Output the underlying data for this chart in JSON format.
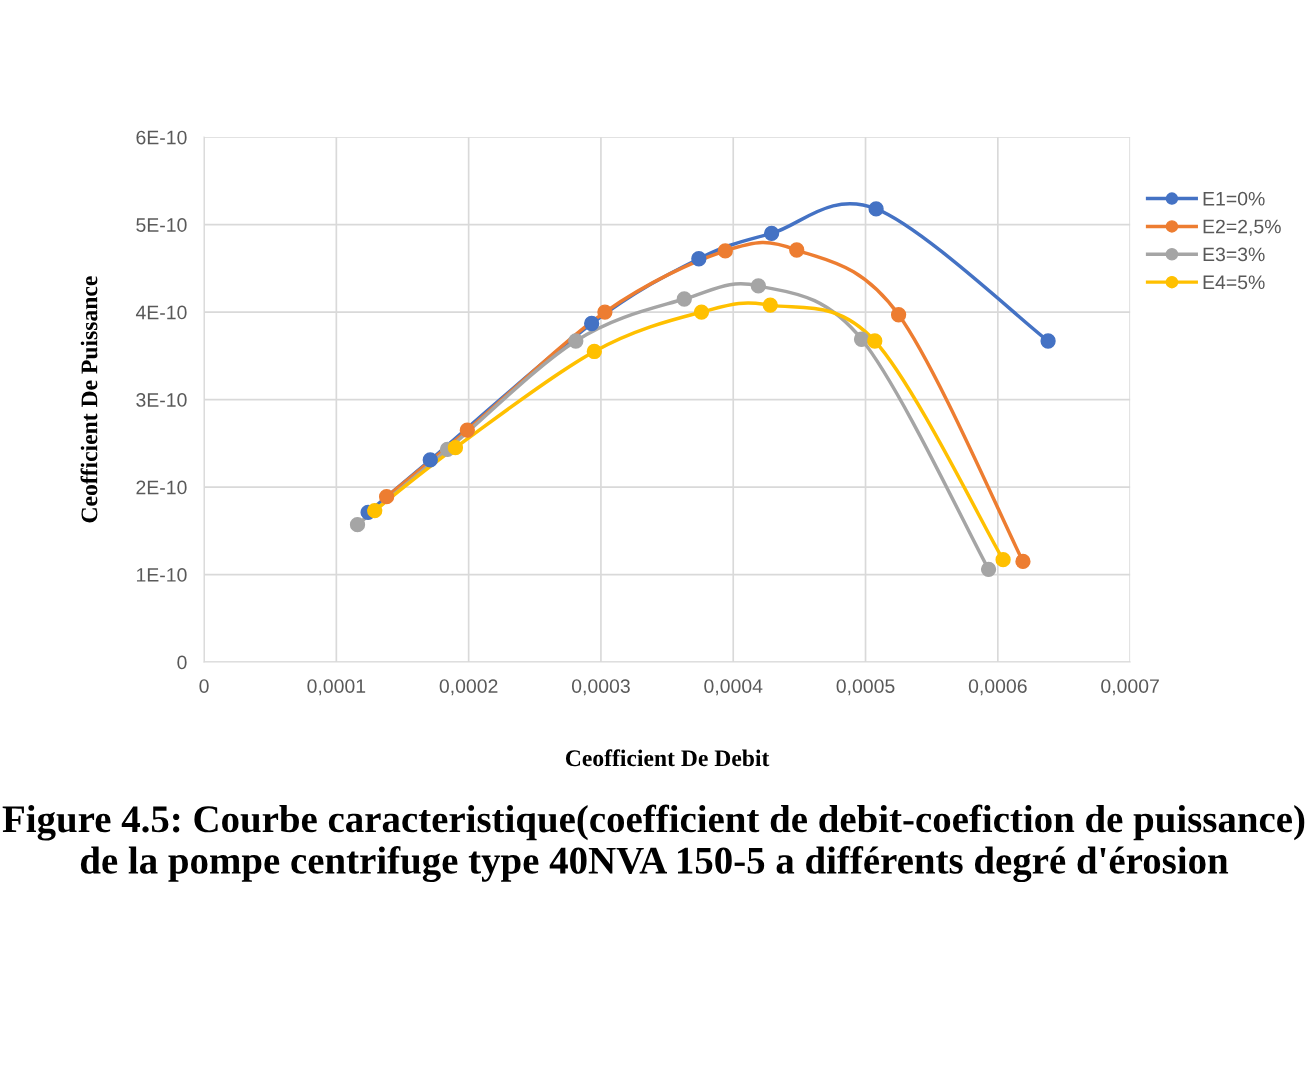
{
  "chart_data": {
    "type": "line",
    "xlabel": "Ceofficient De Debit",
    "ylabel": "Ceofficient De Puissance",
    "annotations": [
      "Figure 4.5: Courbe caracteristique(coefficient de debit-coefiction de puissance) de la pompe centrifuge type 40NVA 150-5 a différents degré d'érosion"
    ],
    "xlim": [
      0,
      0.0007
    ],
    "xticks": [
      {
        "value": 0,
        "label": "0"
      },
      {
        "value": 0.0001,
        "label": "0,0001"
      },
      {
        "value": 0.0002,
        "label": "0,0002"
      },
      {
        "value": 0.0003,
        "label": "0,0003"
      },
      {
        "value": 0.0004,
        "label": "0,0004"
      },
      {
        "value": 0.0005,
        "label": "0,0005"
      },
      {
        "value": 0.0006,
        "label": "0,0006"
      },
      {
        "value": 0.0007,
        "label": "0,0007"
      }
    ],
    "ylim": [
      0,
      6e-10
    ],
    "yticks": [
      {
        "value": 0,
        "label": "0"
      },
      {
        "value": 1e-10,
        "label": "1E-10"
      },
      {
        "value": 2e-10,
        "label": "2E-10"
      },
      {
        "value": 3e-10,
        "label": "3E-10"
      },
      {
        "value": 4e-10,
        "label": "4E-10"
      },
      {
        "value": 5e-10,
        "label": "5E-10"
      },
      {
        "value": 6e-10,
        "label": "6E-10"
      }
    ],
    "grid": true,
    "legend": "right",
    "marker": "circle",
    "line_style": "solid",
    "series": [
      {
        "name": "E1=0%",
        "color": "#4472c4",
        "x": [
          0.000124,
          0.000171,
          0.000293,
          0.000374,
          0.000429,
          0.000508,
          0.000638
        ],
        "values": [
          1.71e-10,
          2.31e-10,
          3.87e-10,
          4.61e-10,
          4.9e-10,
          5.18e-10,
          3.67e-10
        ]
      },
      {
        "name": "E2=2,5%",
        "color": "#ed7d31",
        "x": [
          0.000138,
          0.000199,
          0.000303,
          0.000394,
          0.000448,
          0.000525,
          0.000619
        ],
        "values": [
          1.89e-10,
          2.65e-10,
          4e-10,
          4.7e-10,
          4.71e-10,
          3.97e-10,
          1.15e-10
        ]
      },
      {
        "name": "E3=3%",
        "color": "#a5a5a5",
        "x": [
          0.000116,
          0.000184,
          0.000281,
          0.000363,
          0.000419,
          0.000497,
          0.000593
        ],
        "values": [
          1.57e-10,
          2.43e-10,
          3.67e-10,
          4.15e-10,
          4.3e-10,
          3.69e-10,
          1.06e-10
        ]
      },
      {
        "name": "E4=5%",
        "color": "#ffc000",
        "x": [
          0.000129,
          0.00019,
          0.000295,
          0.000376,
          0.000428,
          0.000507,
          0.000604
        ],
        "values": [
          1.73e-10,
          2.45e-10,
          3.55e-10,
          4e-10,
          4.08e-10,
          3.67e-10,
          1.17e-10
        ]
      }
    ]
  }
}
